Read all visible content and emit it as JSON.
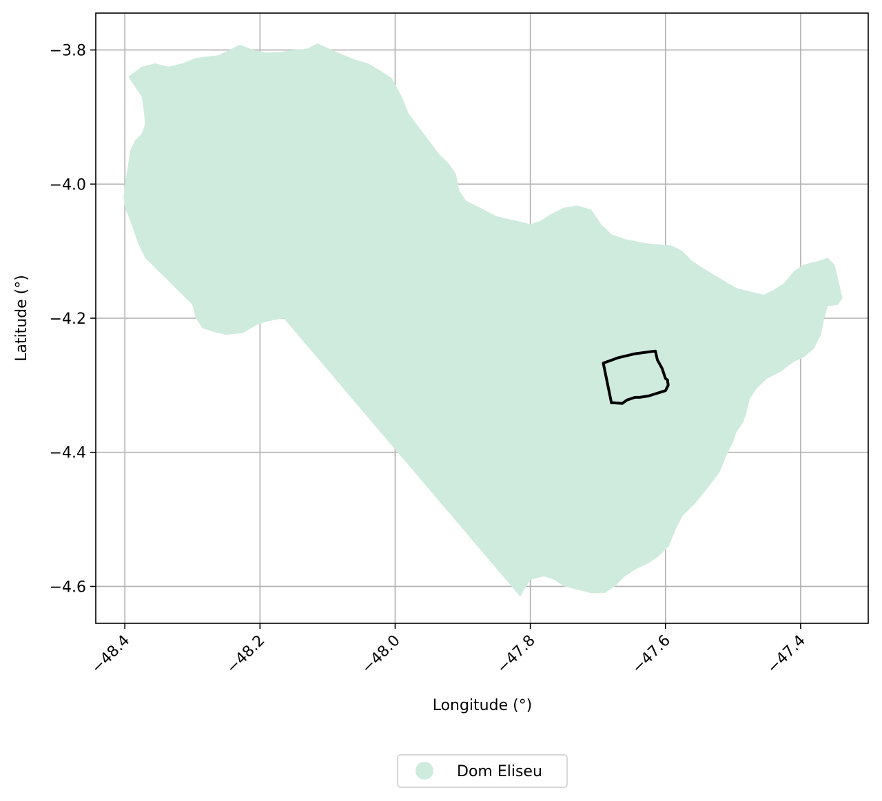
{
  "chart_data": {
    "type": "map",
    "title": "",
    "xlabel": "Longitude (°)",
    "ylabel": "Latitude (°)",
    "xlim": [
      -48.443,
      -47.3
    ],
    "ylim": [
      -4.655,
      -3.745
    ],
    "grid": true,
    "x_ticks": [
      {
        "value": -48.4,
        "label": "−48.4"
      },
      {
        "value": -48.2,
        "label": "−48.2"
      },
      {
        "value": -48.0,
        "label": "−48.0"
      },
      {
        "value": -47.8,
        "label": "−47.8"
      },
      {
        "value": -47.6,
        "label": "−47.6"
      },
      {
        "value": -47.4,
        "label": "−47.4"
      }
    ],
    "y_ticks": [
      {
        "value": -3.8,
        "label": "−3.8"
      },
      {
        "value": -4.0,
        "label": "−4.0"
      },
      {
        "value": -4.2,
        "label": "−4.2"
      },
      {
        "value": -4.4,
        "label": "−4.4"
      },
      {
        "value": -4.6,
        "label": "−4.6"
      }
    ],
    "legend": {
      "placement": "bottom-center",
      "entries": [
        {
          "label": "Dom Eliseu",
          "color": "#cfebdd"
        }
      ]
    },
    "region": {
      "name": "Dom Eliseu",
      "fill": "#cfebdd",
      "boundary": [
        [
          -48.395,
          -3.84
        ],
        [
          -48.375,
          -3.825
        ],
        [
          -48.355,
          -3.82
        ],
        [
          -48.335,
          -3.825
        ],
        [
          -48.315,
          -3.82
        ],
        [
          -48.295,
          -3.812
        ],
        [
          -48.28,
          -3.81
        ],
        [
          -48.262,
          -3.808
        ],
        [
          -48.245,
          -3.8
        ],
        [
          -48.23,
          -3.792
        ],
        [
          -48.21,
          -3.8
        ],
        [
          -48.19,
          -3.804
        ],
        [
          -48.17,
          -3.803
        ],
        [
          -48.15,
          -3.8
        ],
        [
          -48.13,
          -3.798
        ],
        [
          -48.115,
          -3.79
        ],
        [
          -48.1,
          -3.797
        ],
        [
          -48.08,
          -3.806
        ],
        [
          -48.06,
          -3.814
        ],
        [
          -48.04,
          -3.82
        ],
        [
          -48.02,
          -3.832
        ],
        [
          -48.005,
          -3.842
        ],
        [
          -47.99,
          -3.87
        ],
        [
          -47.98,
          -3.895
        ],
        [
          -47.965,
          -3.915
        ],
        [
          -47.95,
          -3.935
        ],
        [
          -47.935,
          -3.955
        ],
        [
          -47.92,
          -3.97
        ],
        [
          -47.91,
          -3.985
        ],
        [
          -47.905,
          -4.01
        ],
        [
          -47.895,
          -4.025
        ],
        [
          -47.875,
          -4.035
        ],
        [
          -47.85,
          -4.048
        ],
        [
          -47.82,
          -4.055
        ],
        [
          -47.8,
          -4.06
        ],
        [
          -47.785,
          -4.055
        ],
        [
          -47.77,
          -4.045
        ],
        [
          -47.75,
          -4.035
        ],
        [
          -47.73,
          -4.032
        ],
        [
          -47.71,
          -4.038
        ],
        [
          -47.695,
          -4.06
        ],
        [
          -47.68,
          -4.075
        ],
        [
          -47.66,
          -4.082
        ],
        [
          -47.63,
          -4.088
        ],
        [
          -47.61,
          -4.09
        ],
        [
          -47.59,
          -4.092
        ],
        [
          -47.575,
          -4.1
        ],
        [
          -47.56,
          -4.115
        ],
        [
          -47.545,
          -4.125
        ],
        [
          -47.52,
          -4.14
        ],
        [
          -47.495,
          -4.155
        ],
        [
          -47.475,
          -4.16
        ],
        [
          -47.455,
          -4.165
        ],
        [
          -47.44,
          -4.158
        ],
        [
          -47.425,
          -4.148
        ],
        [
          -47.41,
          -4.13
        ],
        [
          -47.395,
          -4.12
        ],
        [
          -47.375,
          -4.115
        ],
        [
          -47.36,
          -4.11
        ],
        [
          -47.35,
          -4.12
        ],
        [
          -47.345,
          -4.14
        ],
        [
          -47.338,
          -4.17
        ],
        [
          -47.345,
          -4.18
        ],
        [
          -47.36,
          -4.182
        ],
        [
          -47.365,
          -4.2
        ],
        [
          -47.37,
          -4.225
        ],
        [
          -47.38,
          -4.245
        ],
        [
          -47.395,
          -4.258
        ],
        [
          -47.41,
          -4.265
        ],
        [
          -47.43,
          -4.28
        ],
        [
          -47.45,
          -4.29
        ],
        [
          -47.465,
          -4.305
        ],
        [
          -47.475,
          -4.32
        ],
        [
          -47.48,
          -4.34
        ],
        [
          -47.485,
          -4.355
        ],
        [
          -47.495,
          -4.37
        ],
        [
          -47.5,
          -4.385
        ],
        [
          -47.51,
          -4.405
        ],
        [
          -47.52,
          -4.43
        ],
        [
          -47.535,
          -4.45
        ],
        [
          -47.555,
          -4.475
        ],
        [
          -47.575,
          -4.495
        ],
        [
          -47.585,
          -4.515
        ],
        [
          -47.595,
          -4.54
        ],
        [
          -47.61,
          -4.555
        ],
        [
          -47.625,
          -4.565
        ],
        [
          -47.645,
          -4.575
        ],
        [
          -47.66,
          -4.585
        ],
        [
          -47.675,
          -4.6
        ],
        [
          -47.69,
          -4.61
        ],
        [
          -47.71,
          -4.61
        ],
        [
          -47.73,
          -4.605
        ],
        [
          -47.75,
          -4.6
        ],
        [
          -47.765,
          -4.59
        ],
        [
          -47.78,
          -4.585
        ],
        [
          -47.8,
          -4.59
        ],
        [
          -47.815,
          -4.615
        ],
        [
          -48.165,
          -4.2
        ],
        [
          -48.19,
          -4.205
        ],
        [
          -48.205,
          -4.21
        ],
        [
          -48.225,
          -4.222
        ],
        [
          -48.25,
          -4.225
        ],
        [
          -48.27,
          -4.22
        ],
        [
          -48.285,
          -4.215
        ],
        [
          -48.295,
          -4.2
        ],
        [
          -48.3,
          -4.18
        ],
        [
          -48.315,
          -4.165
        ],
        [
          -48.335,
          -4.145
        ],
        [
          -48.355,
          -4.125
        ],
        [
          -48.37,
          -4.11
        ],
        [
          -48.38,
          -4.09
        ],
        [
          -48.39,
          -4.06
        ],
        [
          -48.4,
          -4.035
        ],
        [
          -48.402,
          -4.02
        ],
        [
          -48.4,
          -4.0
        ],
        [
          -48.395,
          -3.97
        ],
        [
          -48.392,
          -3.95
        ],
        [
          -48.385,
          -3.935
        ],
        [
          -48.375,
          -3.925
        ],
        [
          -48.37,
          -3.91
        ],
        [
          -48.372,
          -3.89
        ],
        [
          -48.375,
          -3.87
        ],
        [
          -48.385,
          -3.855
        ]
      ]
    },
    "outline": {
      "stroke": "#000000",
      "boundary": [
        [
          -47.692,
          -4.267
        ],
        [
          -47.67,
          -4.259
        ],
        [
          -47.645,
          -4.253
        ],
        [
          -47.615,
          -4.249
        ],
        [
          -47.612,
          -4.262
        ],
        [
          -47.605,
          -4.275
        ],
        [
          -47.6,
          -4.29
        ],
        [
          -47.597,
          -4.292
        ],
        [
          -47.596,
          -4.3
        ],
        [
          -47.6,
          -4.308
        ],
        [
          -47.625,
          -4.316
        ],
        [
          -47.638,
          -4.318
        ],
        [
          -47.645,
          -4.318
        ],
        [
          -47.657,
          -4.322
        ],
        [
          -47.664,
          -4.327
        ],
        [
          -47.68,
          -4.326
        ]
      ]
    }
  }
}
